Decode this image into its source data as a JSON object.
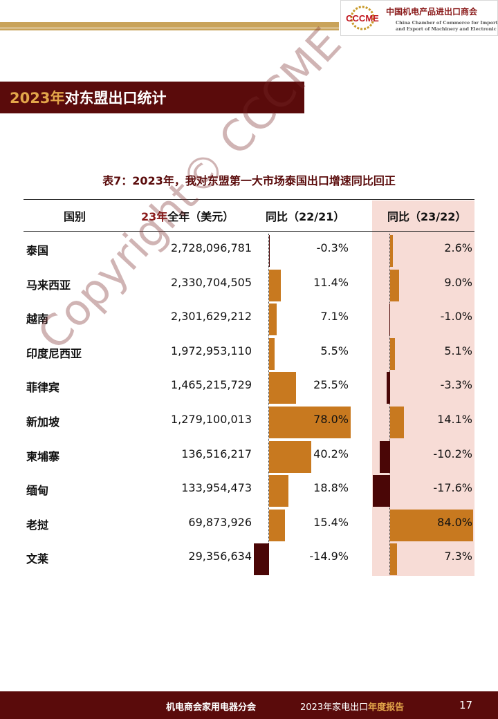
{
  "header": {
    "logo_text": "CCCME",
    "org_cn": "中国机电产品进出口商会",
    "org_en_line1": "China Chamber of Commerce for Import",
    "org_en_line2": "and Export of Machinery and Electronic Products"
  },
  "section": {
    "title_year": "2023年",
    "title_rest": "对东盟出口统计"
  },
  "table": {
    "title": "表7：2023年，我对东盟第一大市场泰国出口增速同比回正",
    "columns": {
      "country": "国别",
      "value_year": "23年",
      "value_rest": "全年（美元）",
      "yoy_2221": "同比（22/21）",
      "yoy_2322": "同比（23/22）"
    },
    "rows": [
      {
        "country": "泰国",
        "value": "2,728,096,781",
        "yoy_2221": "-0.3%",
        "yoy_2322": "2.6%"
      },
      {
        "country": "马来西亚",
        "value": "2,330,704,505",
        "yoy_2221": "11.4%",
        "yoy_2322": "9.0%"
      },
      {
        "country": "越南",
        "value": "2,301,629,212",
        "yoy_2221": "7.1%",
        "yoy_2322": "-1.0%"
      },
      {
        "country": "印度尼西亚",
        "value": "1,972,953,110",
        "yoy_2221": "5.5%",
        "yoy_2322": "5.1%"
      },
      {
        "country": "菲律宾",
        "value": "1,465,215,729",
        "yoy_2221": "25.5%",
        "yoy_2322": "-3.3%"
      },
      {
        "country": "新加坡",
        "value": "1,279,100,013",
        "yoy_2221": "78.0%",
        "yoy_2322": "14.1%"
      },
      {
        "country": "柬埔寨",
        "value": "136,516,217",
        "yoy_2221": "40.2%",
        "yoy_2322": "-10.2%"
      },
      {
        "country": "缅甸",
        "value": "133,954,473",
        "yoy_2221": "18.8%",
        "yoy_2322": "-17.6%"
      },
      {
        "country": "老挝",
        "value": "69,873,926",
        "yoy_2221": "15.4%",
        "yoy_2322": "84.0%"
      },
      {
        "country": "文莱",
        "value": "29,356,634",
        "yoy_2221": "-14.9%",
        "yoy_2322": "7.3%"
      }
    ]
  },
  "colors": {
    "positive_bar": "#c8791f",
    "negative_bar": "#4a0606",
    "band": "#f7dcd6",
    "brand": "#5a0b0b"
  },
  "watermark": "Copyright© CCCME",
  "footer": {
    "left": "机电商会家用电器分会",
    "mid_plain": "2023年家电出口",
    "mid_highlight": "年度报告",
    "page": "17"
  }
}
